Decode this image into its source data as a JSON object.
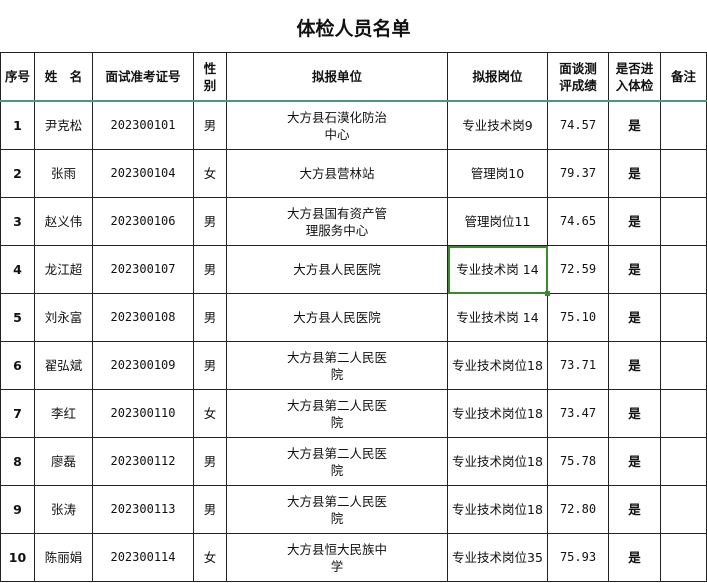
{
  "title": "体检人员名单",
  "headers": [
    "序号",
    "姓　名",
    "面试准考证号",
    "性别",
    "拟报单位",
    "拟报岗位",
    "面谈测评成绩",
    "是否进入体检",
    "备注"
  ],
  "rows": [
    {
      "seq": "1",
      "name": "尹克松",
      "id": "202300101",
      "gender": "男",
      "unit": "大方县石漠化防治中心",
      "post": "专业技术岗9",
      "score": "74.57",
      "exam": "是",
      "note": ""
    },
    {
      "seq": "2",
      "name": "张雨",
      "id": "202300104",
      "gender": "女",
      "unit": "大方县营林站",
      "post": "管理岗10",
      "score": "79.37",
      "exam": "是",
      "note": ""
    },
    {
      "seq": "3",
      "name": "赵义伟",
      "id": "202300106",
      "gender": "男",
      "unit": "大方县国有资产管理服务中心",
      "post": "管理岗位11",
      "score": "74.65",
      "exam": "是",
      "note": ""
    },
    {
      "seq": "4",
      "name": "龙江超",
      "id": "202300107",
      "gender": "男",
      "unit": "大方县人民医院",
      "post": "专业技术岗 14",
      "score": "72.59",
      "exam": "是",
      "note": ""
    },
    {
      "seq": "5",
      "name": "刘永富",
      "id": "202300108",
      "gender": "男",
      "unit": "大方县人民医院",
      "post": "专业技术岗 14",
      "score": "75.10",
      "exam": "是",
      "note": ""
    },
    {
      "seq": "6",
      "name": "翟弘斌",
      "id": "202300109",
      "gender": "男",
      "unit": "大方县第二人民医院",
      "post": "专业技术岗位18",
      "score": "73.71",
      "exam": "是",
      "note": ""
    },
    {
      "seq": "7",
      "name": "李红",
      "id": "202300110",
      "gender": "女",
      "unit": "大方县第二人民医院",
      "post": "专业技术岗位18",
      "score": "73.47",
      "exam": "是",
      "note": ""
    },
    {
      "seq": "8",
      "name": "廖磊",
      "id": "202300112",
      "gender": "男",
      "unit": "大方县第二人民医院",
      "post": "专业技术岗位18",
      "score": "75.78",
      "exam": "是",
      "note": ""
    },
    {
      "seq": "9",
      "name": "张涛",
      "id": "202300113",
      "gender": "男",
      "unit": "大方县第二人民医院",
      "post": "专业技术岗位18",
      "score": "72.80",
      "exam": "是",
      "note": ""
    },
    {
      "seq": "10",
      "name": "陈丽娟",
      "id": "202300114",
      "gender": "女",
      "unit": "大方县恒大民族中学",
      "post": "专业技术岗位35",
      "score": "75.93",
      "exam": "是",
      "note": ""
    }
  ],
  "selected_cell": {
    "row": 4,
    "column": "拟报岗位"
  },
  "colors": {
    "selection": "#3c8a2e",
    "header_divider": "#4a9a7a"
  }
}
